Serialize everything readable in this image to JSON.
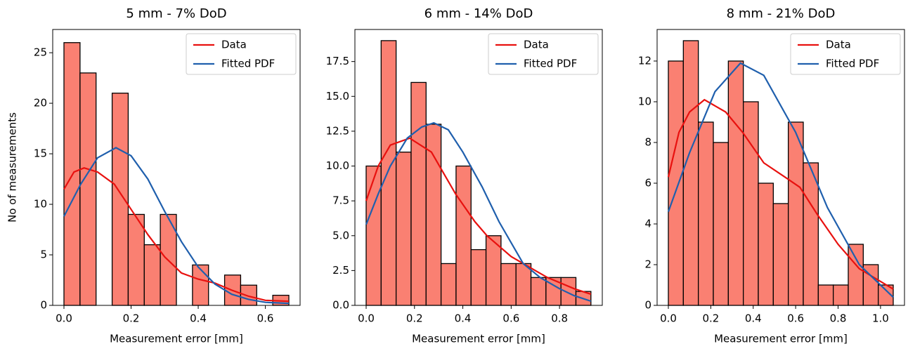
{
  "chart_data": [
    {
      "type": "histogram",
      "title": "5 mm - 7% DoD",
      "x_label": "Measurement error [mm]",
      "y_label": "No of measurements",
      "bins": [
        0,
        0.0479,
        0.0957,
        0.1436,
        0.1914,
        0.2393,
        0.2871,
        0.335,
        0.3829,
        0.4307,
        0.4786,
        0.5264,
        0.5743,
        0.6221,
        0.67
      ],
      "counts": [
        26,
        23,
        0,
        21,
        9,
        6,
        9,
        0,
        4,
        0,
        3,
        2,
        0,
        1
      ],
      "color": "#fa8072",
      "series": [
        {
          "name": "Data",
          "color": "#e8110f",
          "x": [
            0,
            0.03,
            0.06,
            0.1,
            0.15,
            0.2,
            0.25,
            0.3,
            0.35,
            0.4,
            0.45,
            0.5,
            0.55,
            0.6,
            0.67
          ],
          "values": [
            11.5,
            13.2,
            13.6,
            13.2,
            12,
            9.5,
            7,
            4.8,
            3.2,
            2.6,
            2.2,
            1.5,
            0.9,
            0.5,
            0.4
          ]
        },
        {
          "name": "Fitted PDF",
          "color": "#1f5fad",
          "x": [
            0,
            0.05,
            0.1,
            0.155,
            0.2,
            0.25,
            0.3,
            0.35,
            0.4,
            0.45,
            0.5,
            0.55,
            0.6,
            0.67
          ],
          "values": [
            8.8,
            12,
            14.6,
            15.6,
            14.8,
            12.5,
            9.3,
            6.3,
            3.8,
            2.1,
            1.1,
            0.6,
            0.3,
            0.2
          ]
        }
      ],
      "xlim": [
        -0.0335,
        0.7035
      ],
      "ylim": [
        0,
        27.3
      ],
      "xticks": [
        {
          "value": 0,
          "label": "0.0"
        },
        0.2,
        0.4,
        0.6
      ],
      "yticks": [
        0,
        5,
        10,
        15,
        20,
        25
      ],
      "legend": "upper right"
    },
    {
      "type": "histogram",
      "title": "6 mm - 14% DoD",
      "x_label": "Measurement error [mm]",
      "bins": [
        0,
        0.062,
        0.124,
        0.186,
        0.248,
        0.31,
        0.372,
        0.434,
        0.496,
        0.558,
        0.62,
        0.682,
        0.744,
        0.806,
        0.868,
        0.93
      ],
      "counts": [
        10,
        19,
        11,
        16,
        13,
        3,
        10,
        4,
        5,
        3,
        3,
        2,
        2,
        2,
        1
      ],
      "color": "#fa8072",
      "series": [
        {
          "name": "Data",
          "color": "#e8110f",
          "x": [
            0,
            0.05,
            0.1,
            0.18,
            0.27,
            0.37,
            0.45,
            0.5,
            0.6,
            0.7,
            0.75,
            0.86,
            0.93
          ],
          "values": [
            7.5,
            10,
            11.5,
            12,
            11,
            8,
            6,
            5,
            3.5,
            2.5,
            2,
            1.2,
            0.8
          ]
        },
        {
          "name": "Fitted PDF",
          "color": "#1f5fad",
          "x": [
            0,
            0.05,
            0.1,
            0.17,
            0.23,
            0.28,
            0.34,
            0.4,
            0.48,
            0.55,
            0.65,
            0.72,
            0.8,
            0.86,
            0.93
          ],
          "values": [
            5.8,
            8,
            10,
            12,
            12.8,
            13.1,
            12.6,
            11,
            8.5,
            6,
            3,
            2,
            1.2,
            0.7,
            0.3
          ]
        }
      ],
      "xlim": [
        -0.0465,
        0.977
      ],
      "ylim": [
        0,
        19.8
      ],
      "xticks": [
        {
          "value": 0,
          "label": "0.0"
        },
        0.2,
        0.4,
        0.6,
        0.8
      ],
      "yticks": [
        {
          "value": 0,
          "label": "0.0"
        },
        2.5,
        {
          "value": 5,
          "label": "5.0"
        },
        7.5,
        {
          "value": 10,
          "label": "10.0"
        },
        12.5,
        {
          "value": 15,
          "label": "15.0"
        },
        17.5
      ],
      "legend": "upper right"
    },
    {
      "type": "histogram",
      "title": "8 mm - 21% DoD",
      "x_label": "Measurement error [mm]",
      "bins": [
        0,
        0.0707,
        0.1413,
        0.212,
        0.2827,
        0.3533,
        0.424,
        0.4947,
        0.5653,
        0.636,
        0.7067,
        0.7773,
        0.848,
        0.9187,
        0.9893,
        1.06
      ],
      "counts": [
        12,
        13,
        9,
        8,
        12,
        10,
        6,
        5,
        9,
        7,
        1,
        1,
        3,
        2,
        1
      ],
      "color": "#fa8072",
      "series": [
        {
          "name": "Data",
          "color": "#e8110f",
          "x": [
            0,
            0.05,
            0.1,
            0.17,
            0.27,
            0.35,
            0.45,
            0.55,
            0.62,
            0.7,
            0.8,
            0.9,
            1.06
          ],
          "values": [
            6.3,
            8.5,
            9.5,
            10.1,
            9.5,
            8.5,
            7,
            6.3,
            5.8,
            4.5,
            3,
            1.8,
            0.8
          ]
        },
        {
          "name": "Fitted PDF",
          "color": "#1f5fad",
          "x": [
            0,
            0.1,
            0.22,
            0.34,
            0.45,
            0.6,
            0.75,
            0.9,
            1.06
          ],
          "values": [
            4.6,
            7.5,
            10.5,
            11.9,
            11.3,
            8.5,
            4.8,
            2,
            0.4
          ]
        }
      ],
      "xlim": [
        -0.053,
        1.113
      ],
      "ylim": [
        0,
        13.55
      ],
      "xticks": [
        {
          "value": 0,
          "label": "0.0"
        },
        0.2,
        0.4,
        0.6,
        0.8,
        {
          "value": 1,
          "label": "1.0"
        }
      ],
      "yticks": [
        0,
        2,
        4,
        6,
        8,
        10,
        12
      ],
      "legend": "upper right"
    }
  ]
}
